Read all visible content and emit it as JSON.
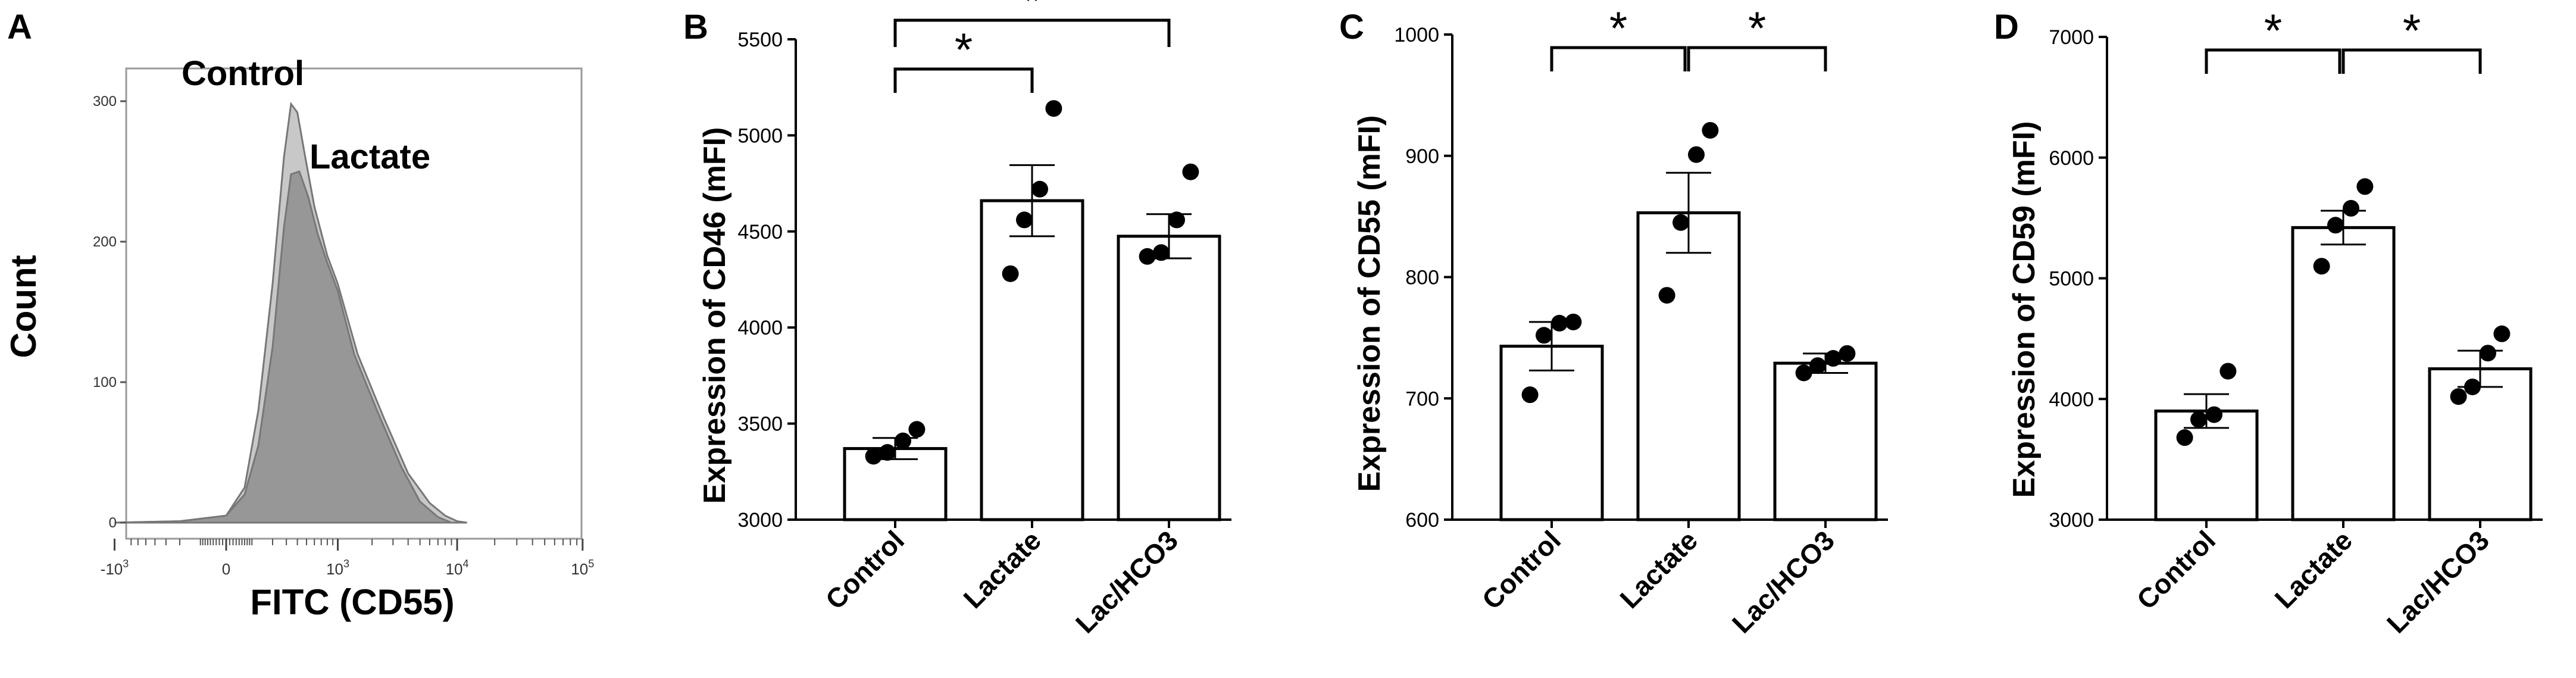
{
  "chart_data": [
    {
      "panel": "A",
      "type": "area",
      "xlabel": "FITC (CD55)",
      "ylabel": "Count",
      "ylim": [
        0,
        300
      ],
      "yticks": [
        "0",
        "100",
        "200",
        "300"
      ],
      "xticks": [
        {
          "base": "-10",
          "exp": "3"
        },
        {
          "base": "0",
          "exp": ""
        },
        {
          "base": "10",
          "exp": "3"
        },
        {
          "base": "10",
          "exp": "4"
        },
        {
          "base": "10",
          "exp": "5"
        }
      ],
      "series": [
        {
          "name": "Control",
          "color": "#c8c8c8",
          "points": [
            [
              -1000,
              0
            ],
            [
              -200,
              1
            ],
            [
              0,
              5
            ],
            [
              60,
              25
            ],
            [
              120,
              80
            ],
            [
              200,
              170
            ],
            [
              280,
              260
            ],
            [
              340,
              298
            ],
            [
              400,
              292
            ],
            [
              480,
              262
            ],
            [
              600,
              225
            ],
            [
              800,
              190
            ],
            [
              1000,
              170
            ],
            [
              1500,
              120
            ],
            [
              2500,
              75
            ],
            [
              4000,
              35
            ],
            [
              6000,
              14
            ],
            [
              8000,
              5
            ],
            [
              10000,
              1
            ],
            [
              12000,
              0
            ]
          ]
        },
        {
          "name": "Lactate",
          "color": "#8e8e8e",
          "points": [
            [
              -1000,
              0
            ],
            [
              -200,
              1
            ],
            [
              0,
              5
            ],
            [
              60,
              20
            ],
            [
              120,
              55
            ],
            [
              200,
              125
            ],
            [
              280,
              210
            ],
            [
              340,
              248
            ],
            [
              420,
              250
            ],
            [
              520,
              232
            ],
            [
              650,
              205
            ],
            [
              800,
              185
            ],
            [
              1000,
              165
            ],
            [
              1400,
              120
            ],
            [
              2200,
              80
            ],
            [
              3500,
              40
            ],
            [
              5000,
              15
            ],
            [
              7000,
              4
            ],
            [
              9000,
              0
            ]
          ]
        }
      ]
    },
    {
      "panel": "B",
      "type": "bar",
      "ylabel": "Expression of CD46 (mFI)",
      "ylim": [
        3000,
        5500
      ],
      "yticks": [
        "3000",
        "3500",
        "4000",
        "4500",
        "5000",
        "5500"
      ],
      "categories": [
        "Control",
        "Lactate",
        "Lac/HCO3"
      ],
      "values": [
        3370,
        4660,
        4475
      ],
      "sem": [
        55,
        185,
        115
      ],
      "points": [
        [
          3330,
          3350,
          3410,
          3470
        ],
        [
          4280,
          4560,
          4720,
          5140
        ],
        [
          4370,
          4390,
          4560,
          4810
        ]
      ],
      "significance": [
        {
          "from": 0,
          "to": 1,
          "label": "*"
        },
        {
          "from": 0,
          "to": 2,
          "label": "*"
        }
      ]
    },
    {
      "panel": "C",
      "type": "bar",
      "ylabel": "Expression of CD55 (mFI)",
      "ylim": [
        600,
        1000
      ],
      "yticks": [
        "600",
        "700",
        "800",
        "900",
        "1000"
      ],
      "categories": [
        "Control",
        "Lactate",
        "Lac/HCO3"
      ],
      "values": [
        743,
        853,
        729
      ],
      "sem": [
        20,
        33,
        8
      ],
      "points": [
        [
          703,
          752,
          762,
          763
        ],
        [
          785,
          845,
          901,
          921
        ],
        [
          721,
          727,
          733,
          737
        ]
      ],
      "significance": [
        {
          "from": 0,
          "to": 1,
          "label": "*"
        },
        {
          "from": 1,
          "to": 2,
          "label": "*"
        }
      ]
    },
    {
      "panel": "D",
      "type": "bar",
      "ylabel": "Expression of CD59 (mFI)",
      "ylim": [
        3000,
        7000
      ],
      "yticks": [
        "3000",
        "4000",
        "5000",
        "6000",
        "7000"
      ],
      "categories": [
        "Control",
        "Lactate",
        "Lac/HCO3"
      ],
      "values": [
        3900,
        5420,
        4250
      ],
      "sem": [
        140,
        140,
        150
      ],
      "points": [
        [
          3680,
          3830,
          3870,
          4230
        ],
        [
          5100,
          5440,
          5580,
          5760
        ],
        [
          4020,
          4100,
          4380,
          4540
        ]
      ],
      "significance": [
        {
          "from": 0,
          "to": 1,
          "label": "*"
        },
        {
          "from": 1,
          "to": 2,
          "label": "*"
        }
      ]
    }
  ]
}
